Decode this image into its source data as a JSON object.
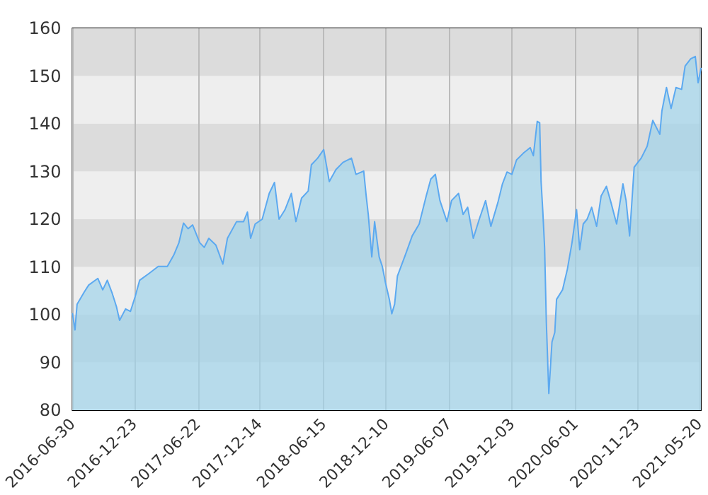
{
  "chart_data": {
    "type": "area",
    "x": [
      "2016-06-30",
      "2016-07-07",
      "2016-07-13",
      "2016-08-02",
      "2016-08-15",
      "2016-09-10",
      "2016-09-24",
      "2016-10-07",
      "2016-10-20",
      "2016-11-02",
      "2016-11-11",
      "2016-11-28",
      "2016-12-12",
      "2016-12-25",
      "2017-01-07",
      "2017-02-02",
      "2017-03-01",
      "2017-03-27",
      "2017-04-15",
      "2017-04-29",
      "2017-05-12",
      "2017-05-25",
      "2017-06-07",
      "2017-06-27",
      "2017-07-10",
      "2017-07-23",
      "2017-08-12",
      "2017-09-01",
      "2017-09-14",
      "2017-10-10",
      "2017-10-30",
      "2017-11-10",
      "2017-11-19",
      "2017-12-02",
      "2017-12-22",
      "2018-01-11",
      "2018-01-26",
      "2018-02-08",
      "2018-02-25",
      "2018-03-15",
      "2018-03-28",
      "2018-04-13",
      "2018-05-02",
      "2018-05-11",
      "2018-05-29",
      "2018-06-15",
      "2018-07-01",
      "2018-07-20",
      "2018-08-09",
      "2018-09-02",
      "2018-09-15",
      "2018-10-07",
      "2018-10-14",
      "2018-10-20",
      "2018-10-30",
      "2018-11-07",
      "2018-11-20",
      "2018-11-29",
      "2018-12-08",
      "2018-12-19",
      "2018-12-26",
      "2019-01-03",
      "2019-01-11",
      "2019-02-03",
      "2019-02-22",
      "2019-03-14",
      "2019-04-03",
      "2019-04-16",
      "2019-04-29",
      "2019-05-12",
      "2019-06-01",
      "2019-06-14",
      "2019-07-04",
      "2019-07-17",
      "2019-07-30",
      "2019-08-15",
      "2019-09-01",
      "2019-09-19",
      "2019-10-04",
      "2019-10-24",
      "2019-11-06",
      "2019-11-19",
      "2019-12-03",
      "2019-12-16",
      "2020-01-04",
      "2020-01-24",
      "2020-02-02",
      "2020-02-13",
      "2020-02-20",
      "2020-02-24",
      "2020-02-29",
      "2020-03-05",
      "2020-03-10",
      "2020-03-17",
      "2020-03-26",
      "2020-04-03",
      "2020-04-08",
      "2020-04-25",
      "2020-05-09",
      "2020-05-22",
      "2020-06-04",
      "2020-06-13",
      "2020-06-23",
      "2020-07-04",
      "2020-07-17",
      "2020-07-31",
      "2020-08-13",
      "2020-08-28",
      "2020-09-10",
      "2020-09-26",
      "2020-10-14",
      "2020-10-23",
      "2020-11-02",
      "2020-11-15",
      "2020-12-05",
      "2020-12-22",
      "2021-01-07",
      "2021-01-27",
      "2021-02-02",
      "2021-02-15",
      "2021-02-28",
      "2021-03-14",
      "2021-03-30",
      "2021-04-09",
      "2021-04-25",
      "2021-05-08",
      "2021-05-16",
      "2021-05-24"
    ],
    "series": [
      {
        "color": "#5ca9f0",
        "values": [
          100.2,
          96.8,
          102.2,
          104.7,
          106.2,
          107.6,
          105.2,
          107.2,
          104.7,
          101.7,
          98.8,
          101.2,
          100.7,
          103.7,
          107.2,
          108.6,
          110.1,
          110.1,
          112.6,
          115.1,
          119.2,
          118.0,
          118.8,
          115.1,
          114.1,
          116.0,
          114.6,
          110.6,
          116.0,
          119.5,
          119.5,
          121.5,
          116.0,
          119.0,
          120.0,
          125.4,
          127.7,
          120.0,
          122.0,
          125.4,
          119.5,
          124.4,
          125.9,
          131.4,
          132.8,
          134.6,
          127.9,
          130.4,
          131.9,
          132.8,
          129.4,
          130.1,
          124.9,
          121.0,
          112.1,
          119.5,
          112.1,
          110.1,
          106.7,
          103.2,
          100.2,
          102.2,
          108.1,
          112.6,
          116.5,
          119.0,
          124.9,
          128.4,
          129.4,
          123.9,
          119.5,
          123.9,
          125.4,
          121.0,
          122.5,
          116.0,
          120.0,
          123.9,
          118.5,
          123.5,
          127.4,
          129.9,
          129.4,
          132.4,
          133.8,
          135.0,
          133.3,
          140.5,
          140.2,
          127.9,
          121.5,
          114.1,
          98.3,
          83.5,
          94.3,
          96.3,
          103.2,
          105.2,
          109.6,
          115.1,
          122.0,
          113.6,
          119.0,
          120.0,
          122.5,
          118.5,
          124.9,
          126.9,
          123.5,
          119.0,
          127.4,
          123.9,
          116.5,
          130.9,
          132.8,
          135.3,
          140.7,
          137.8,
          142.7,
          147.6,
          143.2,
          147.6,
          147.2,
          152.1,
          153.6,
          154.1,
          148.6,
          151.6
        ]
      }
    ],
    "xlim": [
      "2016-06-30",
      "2021-05-24"
    ],
    "xticks": [
      "2016-06-30",
      "2016-12-23",
      "2017-06-22",
      "2017-12-14",
      "2018-06-15",
      "2018-12-10",
      "2019-06-07",
      "2019-12-03",
      "2020-06-01",
      "2020-11-23",
      "2021-05-20"
    ],
    "ylim": [
      80,
      160
    ],
    "yticks": [
      80,
      90,
      100,
      110,
      120,
      130,
      140,
      150,
      160
    ],
    "grid": true
  }
}
